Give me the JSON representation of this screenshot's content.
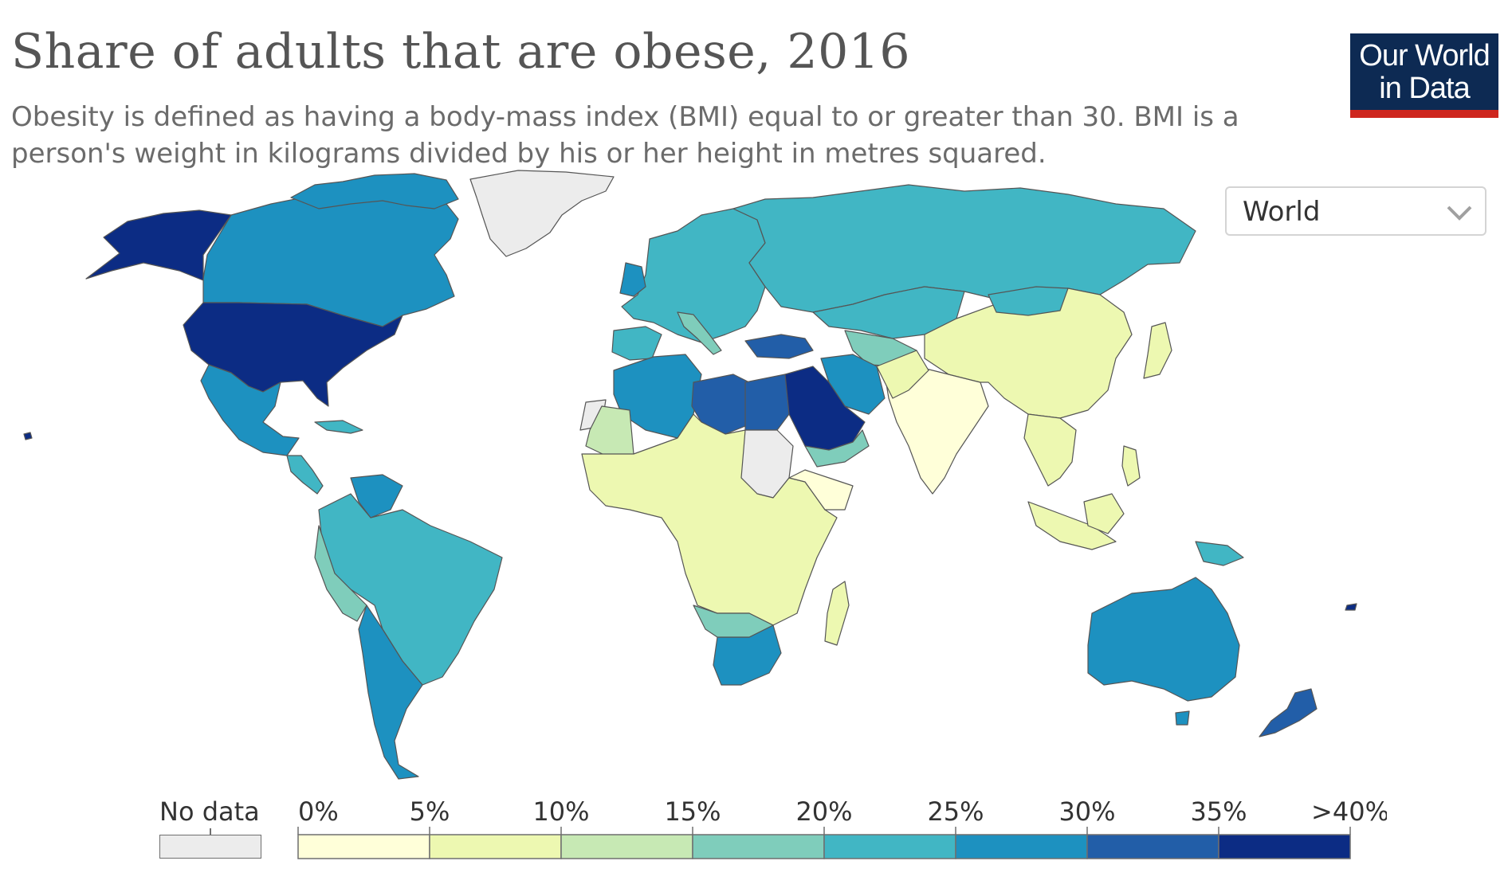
{
  "header": {
    "title": "Share of adults that are obese, 2016",
    "subtitle": "Obesity is defined as having a body-mass index (BMI) equal to or greater than 30. BMI is a person's weight in kilograms divided by his or her height in metres squared."
  },
  "logo": {
    "line1": "Our World",
    "line2": "in Data",
    "bg": "#0d2a53",
    "accent": "#ce261e"
  },
  "region_select": {
    "value": "World",
    "icon": "chevron-down-icon"
  },
  "legend": {
    "no_data_label": "No data",
    "no_data_color": "#ececec",
    "ticks": [
      "0%",
      "5%",
      "10%",
      "15%",
      "20%",
      "25%",
      "30%",
      "35%",
      ">40%"
    ],
    "colors": [
      "#ffffd9",
      "#edf8b1",
      "#c7e9b4",
      "#7fcdbb",
      "#41b6c4",
      "#1d91c0",
      "#225ea8",
      "#0c2c84"
    ]
  },
  "map": {
    "type": "choropleth",
    "projection": "robinson-like world map",
    "metric": "Share of adults that are obese",
    "year": 2016,
    "bins": [
      {
        "range": "0–5%",
        "color": "#ffffd9"
      },
      {
        "range": "5–10%",
        "color": "#edf8b1"
      },
      {
        "range": "10–15%",
        "color": "#c7e9b4"
      },
      {
        "range": "15–20%",
        "color": "#7fcdbb"
      },
      {
        "range": "20–25%",
        "color": "#41b6c4"
      },
      {
        "range": "25–30%",
        "color": "#1d91c0"
      },
      {
        "range": "30–35%",
        "color": "#225ea8"
      },
      {
        "range": ">35%",
        "color": "#0c2c84"
      }
    ]
  }
}
